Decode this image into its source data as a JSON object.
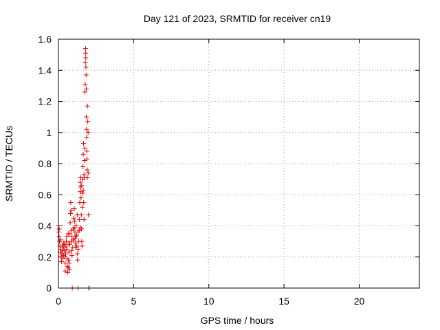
{
  "chart_data": {
    "type": "scatter",
    "title": "Day 121 of 2023, SRMTID for receiver cn19",
    "xlabel": "GPS time / hours",
    "ylabel": "SRMTID / TECUs",
    "xlim": [
      0,
      24
    ],
    "ylim": [
      0,
      1.6
    ],
    "xticks": [
      0,
      5,
      10,
      15,
      20
    ],
    "xtick_labels": [
      "0",
      "5",
      "10",
      "15",
      "20"
    ],
    "yticks": [
      0,
      0.2,
      0.4,
      0.6,
      0.8,
      1.0,
      1.2,
      1.4,
      1.6
    ],
    "ytick_labels": [
      "0",
      "0.2",
      "0.4",
      "0.6",
      "0.8",
      "1",
      "1.2",
      "1.4",
      "1.6"
    ],
    "grid": true,
    "marker": "+",
    "color": "#e00000",
    "series": [
      {
        "name": "cn19",
        "points": [
          [
            0.0,
            0.4
          ],
          [
            0.02,
            0.36
          ],
          [
            0.04,
            0.33
          ],
          [
            0.05,
            0.38
          ],
          [
            0.07,
            0.3
          ],
          [
            0.1,
            0.27
          ],
          [
            0.12,
            0.23
          ],
          [
            0.15,
            0.25
          ],
          [
            0.18,
            0.2
          ],
          [
            0.2,
            0.17
          ],
          [
            0.23,
            0.22
          ],
          [
            0.25,
            0.27
          ],
          [
            0.28,
            0.24
          ],
          [
            0.3,
            0.19
          ],
          [
            0.33,
            0.21
          ],
          [
            0.35,
            0.26
          ],
          [
            0.38,
            0.28
          ],
          [
            0.4,
            0.24
          ],
          [
            0.43,
            0.2
          ],
          [
            0.45,
            0.16
          ],
          [
            0.48,
            0.22
          ],
          [
            0.5,
            0.27
          ],
          [
            0.52,
            0.3
          ],
          [
            0.55,
            0.25
          ],
          [
            0.57,
            0.19
          ],
          [
            0.6,
            0.14
          ],
          [
            0.62,
            0.1
          ],
          [
            0.65,
            0.13
          ],
          [
            0.67,
            0.18
          ],
          [
            0.7,
            0.23
          ],
          [
            0.72,
            0.16
          ],
          [
            0.74,
            0.28
          ],
          [
            0.76,
            0.35
          ],
          [
            0.78,
            0.42
          ],
          [
            0.8,
            0.48
          ],
          [
            0.82,
            0.55
          ],
          [
            0.84,
            0.5
          ],
          [
            0.86,
            0.37
          ],
          [
            0.88,
            0.3
          ],
          [
            0.9,
            0.33
          ],
          [
            0.92,
            0.0
          ],
          [
            0.95,
            0.26
          ],
          [
            0.98,
            0.31
          ],
          [
            1.0,
            0.38
          ],
          [
            1.02,
            0.45
          ],
          [
            1.05,
            0.51
          ],
          [
            1.08,
            0.43
          ],
          [
            1.1,
            0.36
          ],
          [
            1.12,
            0.29
          ],
          [
            1.15,
            0.33
          ],
          [
            1.18,
            0.4
          ],
          [
            1.2,
            0.34
          ],
          [
            1.22,
            0.27
          ],
          [
            1.25,
            0.22
          ],
          [
            1.27,
            0.18
          ],
          [
            1.3,
            0.0
          ],
          [
            1.32,
            0.25
          ],
          [
            1.35,
            0.3
          ],
          [
            1.38,
            0.37
          ],
          [
            1.4,
            0.44
          ],
          [
            1.42,
            0.55
          ],
          [
            1.44,
            0.62
          ],
          [
            1.45,
            0.68
          ],
          [
            1.47,
            0.65
          ],
          [
            1.48,
            0.71
          ],
          [
            1.5,
            0.58
          ],
          [
            1.52,
            0.47
          ],
          [
            1.54,
            0.38
          ],
          [
            1.55,
            0.3
          ],
          [
            1.57,
            0.27
          ],
          [
            1.58,
            0.52
          ],
          [
            1.6,
            0.61
          ],
          [
            1.62,
            0.7
          ],
          [
            1.63,
            0.78
          ],
          [
            1.65,
            0.86
          ],
          [
            1.67,
            0.93
          ],
          [
            1.68,
            0.55
          ],
          [
            1.7,
            0.44
          ],
          [
            1.72,
            0.71
          ],
          [
            1.73,
            0.82
          ],
          [
            1.75,
            0.9
          ],
          [
            1.76,
            1.26
          ],
          [
            1.78,
            1.31
          ],
          [
            1.79,
            1.45
          ],
          [
            1.8,
            1.54
          ],
          [
            1.81,
            1.51
          ],
          [
            1.82,
            1.48
          ],
          [
            1.83,
            1.42
          ],
          [
            1.84,
            1.37
          ],
          [
            1.85,
            1.28
          ],
          [
            1.86,
            1.1
          ],
          [
            1.87,
            1.02
          ],
          [
            1.88,
            0.97
          ],
          [
            1.89,
            0.88
          ],
          [
            1.9,
            0.83
          ],
          [
            1.91,
            0.76
          ],
          [
            1.92,
            0.71
          ],
          [
            1.93,
            1.17
          ],
          [
            1.95,
            1.07
          ],
          [
            1.97,
            1.0
          ],
          [
            1.98,
            0.74
          ],
          [
            2.0,
            0.47
          ],
          [
            2.02,
            0.0
          ],
          [
            2.04,
            0.0
          ],
          [
            0.7,
            0.29
          ],
          [
            0.9,
            0.21
          ],
          [
            1.1,
            0.32
          ],
          [
            1.3,
            0.36
          ],
          [
            0.55,
            0.33
          ],
          [
            0.35,
            0.29
          ],
          [
            0.15,
            0.31
          ],
          [
            0.45,
            0.11
          ],
          [
            0.75,
            0.12
          ],
          [
            1.05,
            0.39
          ],
          [
            1.25,
            0.47
          ],
          [
            1.45,
            0.39
          ],
          [
            1.15,
            0.26
          ],
          [
            0.85,
            0.24
          ],
          [
            0.65,
            0.35
          ],
          [
            1.55,
            0.66
          ],
          [
            1.65,
            0.63
          ],
          [
            1.7,
            0.73
          ]
        ]
      }
    ]
  }
}
